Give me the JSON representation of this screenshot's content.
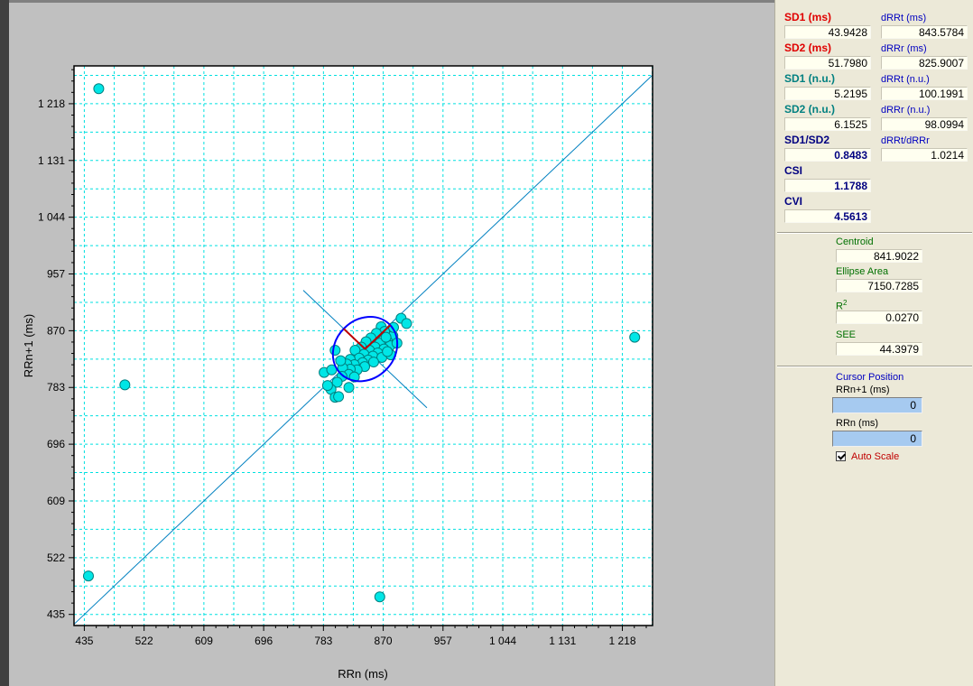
{
  "chart_data": {
    "type": "scatter",
    "xlabel": "RRn (ms)",
    "ylabel": "RRn+1 (ms)",
    "xlim": [
      420,
      1262
    ],
    "ylim": [
      418,
      1276
    ],
    "xticks": [
      435,
      522,
      609,
      696,
      783,
      870,
      957,
      1044,
      1131,
      1218
    ],
    "yticks": [
      435,
      522,
      609,
      696,
      783,
      870,
      957,
      1044,
      1131,
      1218
    ],
    "xtick_labels": [
      "435",
      "522",
      "609",
      "696",
      "783",
      "870",
      "957",
      "1 044",
      "1 131",
      "1 218"
    ],
    "ytick_labels": [
      "435",
      "522",
      "609",
      "696",
      "783",
      "870",
      "957",
      "1 044",
      "1 131",
      "1 218"
    ],
    "grid": true,
    "identity_line": true,
    "ellipse": {
      "center": [
        843.6,
        841.9
      ],
      "sd1": 43.9428,
      "sd2": 51.798
    },
    "points": [
      [
        456,
        1241
      ],
      [
        441,
        494
      ],
      [
        494,
        787
      ],
      [
        1236,
        860
      ],
      [
        865,
        462
      ],
      [
        896,
        889
      ],
      [
        904,
        881
      ],
      [
        884,
        862
      ],
      [
        867,
        876
      ],
      [
        872,
        869
      ],
      [
        860,
        866
      ],
      [
        876,
        854
      ],
      [
        852,
        859
      ],
      [
        880,
        847
      ],
      [
        865,
        851
      ],
      [
        845,
        853
      ],
      [
        858,
        845
      ],
      [
        871,
        842
      ],
      [
        838,
        845
      ],
      [
        850,
        840
      ],
      [
        862,
        836
      ],
      [
        829,
        840
      ],
      [
        842,
        834
      ],
      [
        855,
        831
      ],
      [
        868,
        829
      ],
      [
        835,
        828
      ],
      [
        848,
        825
      ],
      [
        822,
        826
      ],
      [
        840,
        821
      ],
      [
        856,
        822
      ],
      [
        828,
        818
      ],
      [
        817,
        819
      ],
      [
        843,
        815
      ],
      [
        832,
        810
      ],
      [
        822,
        811
      ],
      [
        811,
        813
      ],
      [
        820,
        803
      ],
      [
        810,
        800
      ],
      [
        828,
        799
      ],
      [
        803,
        791
      ],
      [
        794,
        780
      ],
      [
        789,
        786
      ],
      [
        800,
        768
      ],
      [
        805,
        769
      ],
      [
        820,
        783
      ],
      [
        784,
        806
      ],
      [
        795,
        810
      ],
      [
        808,
        824
      ],
      [
        800,
        840
      ],
      [
        881,
        833
      ],
      [
        874,
        860
      ],
      [
        885,
        875
      ],
      [
        890,
        851
      ],
      [
        876,
        838
      ]
    ],
    "colors": {
      "point": "#00e6e6",
      "ellipse": "#0000ff",
      "grid": "#00e0e0",
      "line": "#0080c0",
      "axes_red": "#c00000"
    }
  },
  "panel": {
    "sd1_ms": {
      "label": "SD1 (ms)",
      "value": "43.9428"
    },
    "drrt_ms": {
      "label": "dRRt (ms)",
      "value": "843.5784"
    },
    "sd2_ms": {
      "label": "SD2 (ms)",
      "value": "51.7980"
    },
    "drrr_ms": {
      "label": "dRRr (ms)",
      "value": "825.9007"
    },
    "sd1_nu": {
      "label": "SD1 (n.u.)",
      "value": "5.2195"
    },
    "drrt_nu": {
      "label": "dRRt (n.u.)",
      "value": "100.1991"
    },
    "sd2_nu": {
      "label": "SD2 (n.u.)",
      "value": "6.1525"
    },
    "drrr_nu": {
      "label": "dRRr (n.u.)",
      "value": "98.0994"
    },
    "sd1_sd2": {
      "label": "SD1/SD2",
      "value": "0.8483"
    },
    "drrt_drrr": {
      "label": "dRRt/dRRr",
      "value": "1.0214"
    },
    "csi": {
      "label": "CSI",
      "value": "1.1788"
    },
    "cvi": {
      "label": "CVI",
      "value": "4.5613"
    },
    "centroid": {
      "label": "Centroid",
      "value": "841.9022"
    },
    "ellipse_area": {
      "label": "Ellipse Area",
      "value": "7150.7285"
    },
    "r2": {
      "label": "R",
      "sup": "2",
      "value": "0.0270"
    },
    "see": {
      "label": "SEE",
      "value": "44.3979"
    },
    "cursor": {
      "title": "Cursor Position",
      "rrn1_label": "RRn+1 (ms)",
      "rrn1_value": "0",
      "rrn_label": "RRn (ms)",
      "rrn_value": "0"
    },
    "auto_scale_label": "Auto Scale",
    "auto_scale_checked": true
  }
}
